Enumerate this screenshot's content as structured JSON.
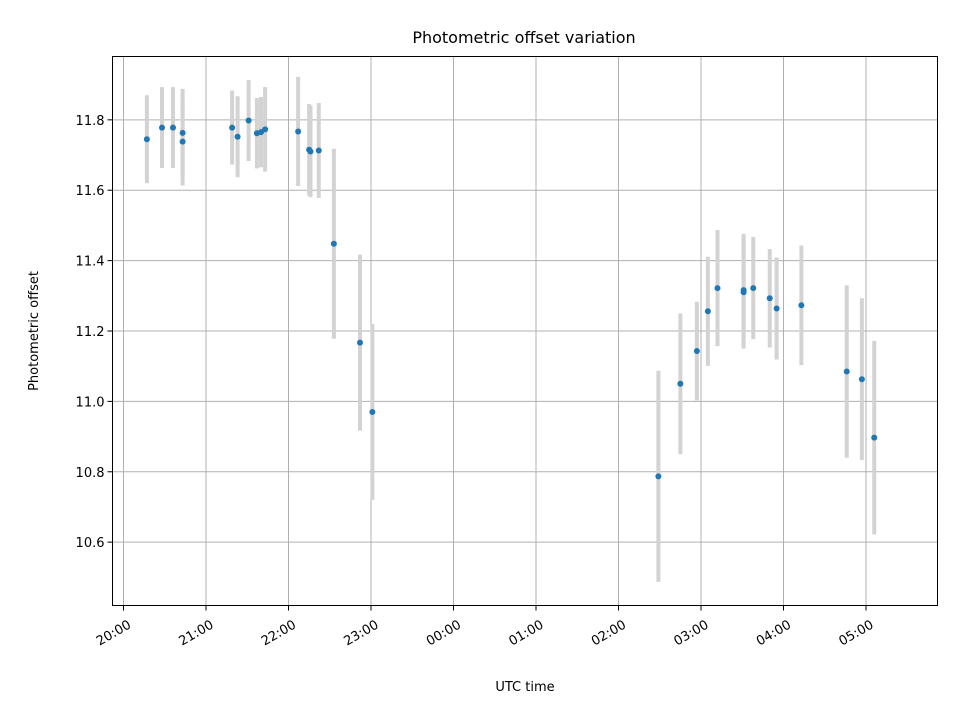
{
  "chart_data": {
    "type": "scatter",
    "title": "Photometric offset variation",
    "xlabel": "UTC time",
    "ylabel": "Photometric offset",
    "x_ticks": [
      "20:00",
      "21:00",
      "22:00",
      "23:00",
      "00:00",
      "01:00",
      "02:00",
      "03:00",
      "04:00",
      "05:00"
    ],
    "y_ticks": [
      "10.6",
      "10.8",
      "11.0",
      "11.2",
      "11.4",
      "11.6",
      "11.8"
    ],
    "xlim": [
      "19:52",
      "05:52"
    ],
    "ylim": [
      10.42,
      11.98
    ],
    "grid": true,
    "point_color": "#1f77b4",
    "errorbar_color": "#d3d3d3",
    "points": [
      {
        "x": "20:17",
        "y": 11.745,
        "err": 0.125
      },
      {
        "x": "20:28",
        "y": 11.778,
        "err": 0.115
      },
      {
        "x": "20:36",
        "y": 11.778,
        "err": 0.115
      },
      {
        "x": "20:43",
        "y": 11.738,
        "err": 0.125
      },
      {
        "x": "20:43",
        "y": 11.763,
        "err": 0.125
      },
      {
        "x": "21:19",
        "y": 11.778,
        "err": 0.105
      },
      {
        "x": "21:23",
        "y": 11.752,
        "err": 0.115
      },
      {
        "x": "21:31",
        "y": 11.798,
        "err": 0.115
      },
      {
        "x": "21:37",
        "y": 11.762,
        "err": 0.1
      },
      {
        "x": "21:40",
        "y": 11.765,
        "err": 0.1
      },
      {
        "x": "21:43",
        "y": 11.773,
        "err": 0.12
      },
      {
        "x": "22:07",
        "y": 11.767,
        "err": 0.155
      },
      {
        "x": "22:15",
        "y": 11.715,
        "err": 0.13
      },
      {
        "x": "22:16",
        "y": 11.71,
        "err": 0.13
      },
      {
        "x": "22:22",
        "y": 11.713,
        "err": 0.135
      },
      {
        "x": "22:33",
        "y": 11.448,
        "err": 0.27
      },
      {
        "x": "22:52",
        "y": 11.167,
        "err": 0.25
      },
      {
        "x": "23:01",
        "y": 10.97,
        "err": 0.25
      },
      {
        "x": "02:29",
        "y": 10.787,
        "err": 0.3
      },
      {
        "x": "02:45",
        "y": 11.05,
        "err": 0.2
      },
      {
        "x": "02:57",
        "y": 11.143,
        "err": 0.14
      },
      {
        "x": "03:05",
        "y": 11.256,
        "err": 0.155
      },
      {
        "x": "03:12",
        "y": 11.322,
        "err": 0.165
      },
      {
        "x": "03:31",
        "y": 11.316,
        "err": 0.16
      },
      {
        "x": "03:31",
        "y": 11.31,
        "err": 0.16
      },
      {
        "x": "03:38",
        "y": 11.322,
        "err": 0.145
      },
      {
        "x": "03:50",
        "y": 11.293,
        "err": 0.14
      },
      {
        "x": "03:55",
        "y": 11.264,
        "err": 0.145
      },
      {
        "x": "04:13",
        "y": 11.273,
        "err": 0.17
      },
      {
        "x": "04:46",
        "y": 11.085,
        "err": 0.245
      },
      {
        "x": "04:57",
        "y": 11.063,
        "err": 0.23
      },
      {
        "x": "05:06",
        "y": 10.897,
        "err": 0.275
      }
    ]
  }
}
